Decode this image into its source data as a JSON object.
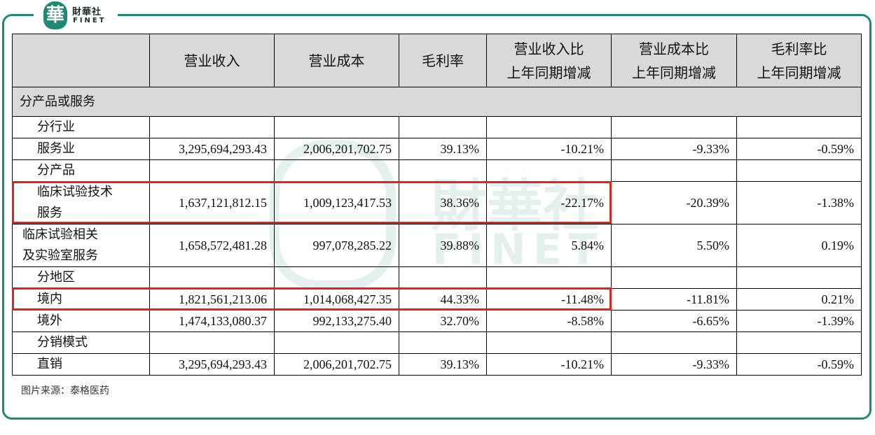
{
  "brand": {
    "logo_glyph": "華",
    "name_cn": "財華社",
    "name_en": "FINET"
  },
  "table": {
    "headers": [
      "",
      "营业收入",
      "营业成本",
      "毛利率",
      "营业收入比\n上年同期增减",
      "营业成本比\n上年同期增减",
      "毛利率比\n上年同期增减"
    ],
    "section_title": "分产品或服务",
    "rows": [
      {
        "label": "分行业",
        "cells": [
          "",
          "",
          "",
          "",
          "",
          ""
        ]
      },
      {
        "label": "服务业",
        "cells": [
          "3,295,694,293.43",
          "2,006,201,702.75",
          "39.13%",
          "-10.21%",
          "-9.33%",
          "-0.59%"
        ]
      },
      {
        "label": "分产品",
        "cells": [
          "",
          "",
          "",
          "",
          "",
          ""
        ]
      },
      {
        "label": "临床试验技术\n服务",
        "cells": [
          "1,637,121,812.15",
          "1,009,123,417.53",
          "38.36%",
          "-22.17%",
          "-20.39%",
          "-1.38%"
        ]
      },
      {
        "label": "临床试验相关\n及实验室服务",
        "cells": [
          "1,658,572,481.28",
          "997,078,285.22",
          "39.88%",
          "5.84%",
          "5.50%",
          "0.19%"
        ]
      },
      {
        "label": "分地区",
        "cells": [
          "",
          "",
          "",
          "",
          "",
          ""
        ]
      },
      {
        "label": "境内",
        "cells": [
          "1,821,561,213.06",
          "1,014,068,427.35",
          "44.33%",
          "-11.48%",
          "-11.81%",
          "0.21%"
        ]
      },
      {
        "label": "境外",
        "cells": [
          "1,474,133,080.37",
          "992,133,275.40",
          "32.70%",
          "-8.58%",
          "-6.65%",
          "-1.39%"
        ]
      },
      {
        "label": "分销模式",
        "cells": [
          "",
          "",
          "",
          "",
          "",
          ""
        ]
      },
      {
        "label": "直销",
        "cells": [
          "3,295,694,293.43",
          "2,006,201,702.75",
          "39.13%",
          "-10.21%",
          "-9.33%",
          "-0.59%"
        ]
      }
    ]
  },
  "highlight_color": "#e0241b",
  "accent_color": "#1f8a74",
  "source_text": "图片来源：泰格医药"
}
